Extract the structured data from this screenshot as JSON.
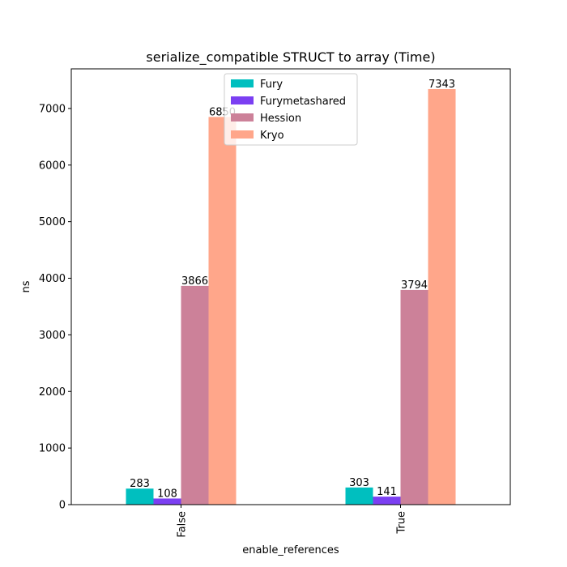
{
  "chart_data": {
    "type": "bar",
    "title": "serialize_compatible STRUCT to array (Time)",
    "xlabel": "enable_references",
    "ylabel": "ns",
    "categories": [
      "False",
      "True"
    ],
    "ylim": [
      0,
      7700
    ],
    "yticks": [
      0,
      1000,
      2000,
      3000,
      4000,
      5000,
      6000,
      7000
    ],
    "grid": false,
    "legend_position": "top-center",
    "series": [
      {
        "name": "Fury",
        "values": [
          283,
          303
        ],
        "color": "#00bfbf"
      },
      {
        "name": "Furymetashared",
        "values": [
          108,
          141
        ],
        "color": "#7b3ff2"
      },
      {
        "name": "Hession",
        "values": [
          3866,
          3794
        ],
        "color": "#cc8199"
      },
      {
        "name": "Kryo",
        "values": [
          6850,
          7343
        ],
        "color": "#ffa68a"
      }
    ]
  }
}
